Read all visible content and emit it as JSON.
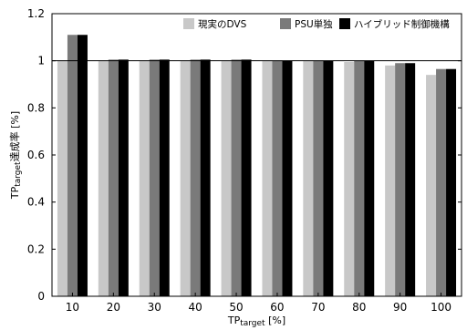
{
  "chart_data": {
    "type": "bar",
    "categories": [
      "10",
      "20",
      "30",
      "40",
      "50",
      "60",
      "70",
      "80",
      "90",
      "100"
    ],
    "series": [
      {
        "name": "現実のDVS",
        "color": "#c8c8c8",
        "values": [
          1.0,
          1.0,
          1.0,
          1.0,
          1.0,
          1.0,
          1.0,
          0.995,
          0.98,
          0.94
        ]
      },
      {
        "name": "PSU単独",
        "color": "#7a7a7a",
        "values": [
          1.11,
          1.005,
          1.005,
          1.005,
          1.005,
          1.0,
          1.0,
          1.0,
          0.99,
          0.965
        ]
      },
      {
        "name": "ハイブリッド制御機構",
        "color": "#000000",
        "values": [
          1.11,
          1.005,
          1.005,
          1.005,
          1.005,
          1.0,
          1.0,
          1.0,
          0.99,
          0.965
        ]
      }
    ],
    "ylim": [
      0,
      1.2
    ],
    "yticks": [
      "0",
      "0.2",
      "0.4",
      "0.6",
      "0.8",
      "1",
      "1.2"
    ],
    "reference_line": 1.0,
    "xlabel_main": "TP",
    "xlabel_sub": "target",
    "xlabel_unit": " [%]",
    "ylabel_main": "TP",
    "ylabel_sub": "target",
    "ylabel_unit": "達成率 [%]",
    "legend_position": "top-right",
    "grid": false
  }
}
